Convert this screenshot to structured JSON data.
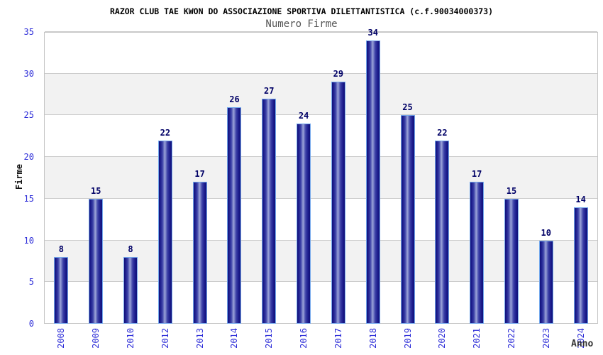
{
  "chart_data": {
    "type": "bar",
    "title": "RAZOR CLUB TAE KWON DO ASSOCIAZIONE SPORTIVA DILETTANTISTICA (c.f.90034000373)",
    "subtitle": "Numero Firme",
    "xlabel": "Anno",
    "ylabel": "Firme",
    "categories": [
      "2008",
      "2009",
      "2010",
      "2012",
      "2013",
      "2014",
      "2015",
      "2016",
      "2017",
      "2018",
      "2019",
      "2020",
      "2021",
      "2022",
      "2023",
      "2024"
    ],
    "values": [
      8,
      15,
      8,
      22,
      17,
      26,
      27,
      24,
      29,
      34,
      25,
      22,
      17,
      15,
      10,
      14
    ],
    "ylim": [
      0,
      35
    ],
    "ytick_step": 5,
    "yticks": [
      0,
      5,
      10,
      15,
      20,
      25,
      30,
      35
    ],
    "grid": true,
    "legend_position": "none",
    "band_rows": "alternating gray every 5 units (5-10, 15-20, 25-30)",
    "colors": {
      "title": "#000000",
      "subtitle": "#555555",
      "axis_label": "#2d2dd8",
      "value_label": "#000066",
      "grid": "#cccccc",
      "band": "#f2f2f2",
      "plot_border": "#c4c4c4",
      "bar_border": "#74a8ec",
      "bar_dark": "#111178",
      "bar_light": "#9aa3d8",
      "y_title": "#111111",
      "x_title": "#333333"
    }
  }
}
